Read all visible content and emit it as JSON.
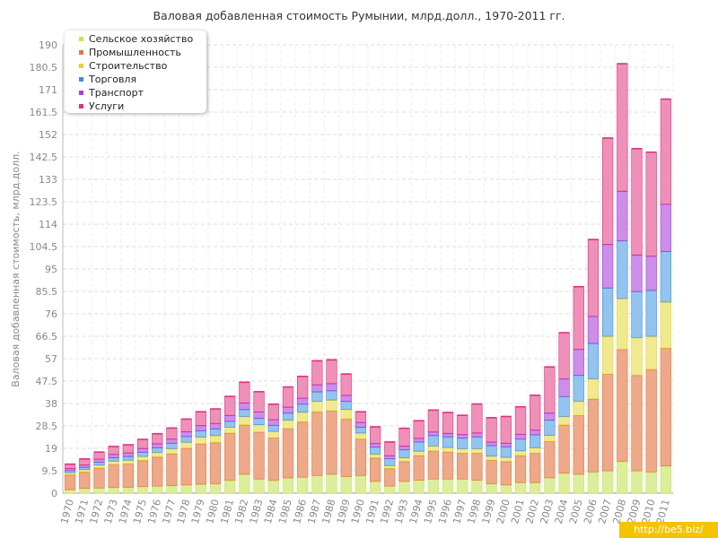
{
  "watermark": "http://be5.biz/",
  "chart_data": {
    "type": "bar",
    "stacked": true,
    "title": "Валовая добавленная стоимость Румынии, млрд.долл., 1970-2011 гг.",
    "ylabel": "Валовая добавленная стоимость, млрд.долл.",
    "xlabel": "",
    "ylim": [
      0,
      190
    ],
    "yticks": [
      "0",
      "9.5",
      "19",
      "28.5",
      "38",
      "47.5",
      "57",
      "66.5",
      "76",
      "85.5",
      "95",
      "104.5",
      "114",
      "123.5",
      "133",
      "142.5",
      "152",
      "161.5",
      "171",
      "180.5",
      "190"
    ],
    "grid": true,
    "legend_position": "top-left",
    "categories": [
      "1970",
      "1971",
      "1972",
      "1973",
      "1974",
      "1975",
      "1976",
      "1977",
      "1978",
      "1979",
      "1980",
      "1981",
      "1982",
      "1983",
      "1984",
      "1985",
      "1986",
      "1987",
      "1988",
      "1989",
      "1990",
      "1991",
      "1992",
      "1993",
      "1994",
      "1995",
      "1996",
      "1997",
      "1998",
      "1999",
      "2000",
      "2001",
      "2002",
      "2003",
      "2004",
      "2005",
      "2006",
      "2007",
      "2008",
      "2009",
      "2010",
      "2011"
    ],
    "series": [
      {
        "name": "Сельское хозяйство",
        "color": "#cbe35a",
        "fill": "#dcee9a",
        "values": [
          1.5,
          2,
          2.2,
          2.4,
          2.5,
          2.8,
          3,
          3.2,
          3.5,
          3.8,
          4,
          5.5,
          8,
          6,
          5.5,
          6.5,
          6.8,
          7.5,
          8,
          7,
          7.5,
          5,
          3,
          5,
          5.5,
          6,
          6,
          6,
          5.5,
          4,
          3.5,
          4.5,
          4.5,
          6.5,
          8.5,
          8,
          9,
          9.5,
          13.5,
          9.5,
          9,
          11.5
        ]
      },
      {
        "name": "Промышленность",
        "color": "#e0763e",
        "fill": "#eda98a",
        "values": [
          6.3,
          7,
          8.5,
          9.8,
          10,
          11.1,
          12.4,
          13.6,
          15.6,
          17.2,
          17.5,
          20,
          21,
          20,
          18,
          21,
          23.5,
          27,
          27,
          24.5,
          15.5,
          10,
          7.5,
          8.5,
          10.5,
          12,
          11.5,
          11,
          11.5,
          10,
          10,
          11.5,
          12.5,
          15.5,
          20.5,
          25,
          31,
          41,
          47.5,
          40.5,
          43.5,
          50
        ]
      },
      {
        "name": "Строительство",
        "color": "#e3d32e",
        "fill": "#f0e98e",
        "values": [
          0.9,
          1,
          1.2,
          1.4,
          1.5,
          1.7,
          1.9,
          2.1,
          2.5,
          2.8,
          2.9,
          2.5,
          3.5,
          3,
          2.7,
          3.5,
          4,
          4.5,
          4.5,
          4,
          2.5,
          1.6,
          1.2,
          1.5,
          1.8,
          2,
          1.9,
          1.9,
          1.9,
          1.7,
          1.7,
          2,
          2.3,
          2.5,
          3.5,
          6,
          8.5,
          16,
          21.5,
          16,
          14,
          19.5
        ]
      },
      {
        "name": "Торговля",
        "color": "#3b8fd9",
        "fill": "#93c4ee",
        "values": [
          0.9,
          1,
          1.3,
          1.5,
          1.6,
          1.8,
          2,
          2.3,
          2.5,
          2.7,
          2.9,
          2.5,
          3,
          2.8,
          2.6,
          3,
          3.5,
          4,
          4,
          3.5,
          2.5,
          3,
          3,
          3.5,
          4,
          4.5,
          4.5,
          4.5,
          5,
          4.5,
          4.5,
          5,
          5.5,
          6.5,
          8.5,
          11,
          15,
          20.5,
          24.5,
          19.5,
          19.5,
          21.5
        ]
      },
      {
        "name": "Транспорт",
        "color": "#a73ed9",
        "fill": "#cc8ee9",
        "values": [
          0.9,
          1,
          1.3,
          1.4,
          1.5,
          1.6,
          1.7,
          1.8,
          2,
          2.2,
          2.3,
          2.5,
          2.8,
          2.7,
          2.4,
          2.5,
          2.5,
          3,
          3,
          2.5,
          2,
          1.5,
          1.2,
          1.5,
          1.5,
          1.5,
          1.5,
          1.5,
          1.7,
          1.5,
          1.5,
          2,
          2,
          3,
          7.5,
          11,
          11.5,
          18.5,
          21,
          15.5,
          14.5,
          20
        ]
      },
      {
        "name": "Услуги",
        "color": "#e03080",
        "fill": "#ef90b9",
        "values": [
          1.8,
          2.5,
          2.9,
          3.3,
          3.4,
          3.8,
          4.2,
          4.6,
          5.3,
          5.8,
          6.1,
          8,
          8.7,
          8.5,
          6.5,
          8.5,
          9.2,
          10.1,
          10,
          9,
          4.5,
          7,
          5.8,
          7.5,
          7.4,
          9.2,
          8.8,
          8.1,
          12.2,
          10.3,
          11.3,
          11.6,
          14.7,
          19.5,
          19.5,
          26.5,
          32.5,
          45,
          54,
          45,
          44,
          44.5
        ]
      }
    ]
  }
}
